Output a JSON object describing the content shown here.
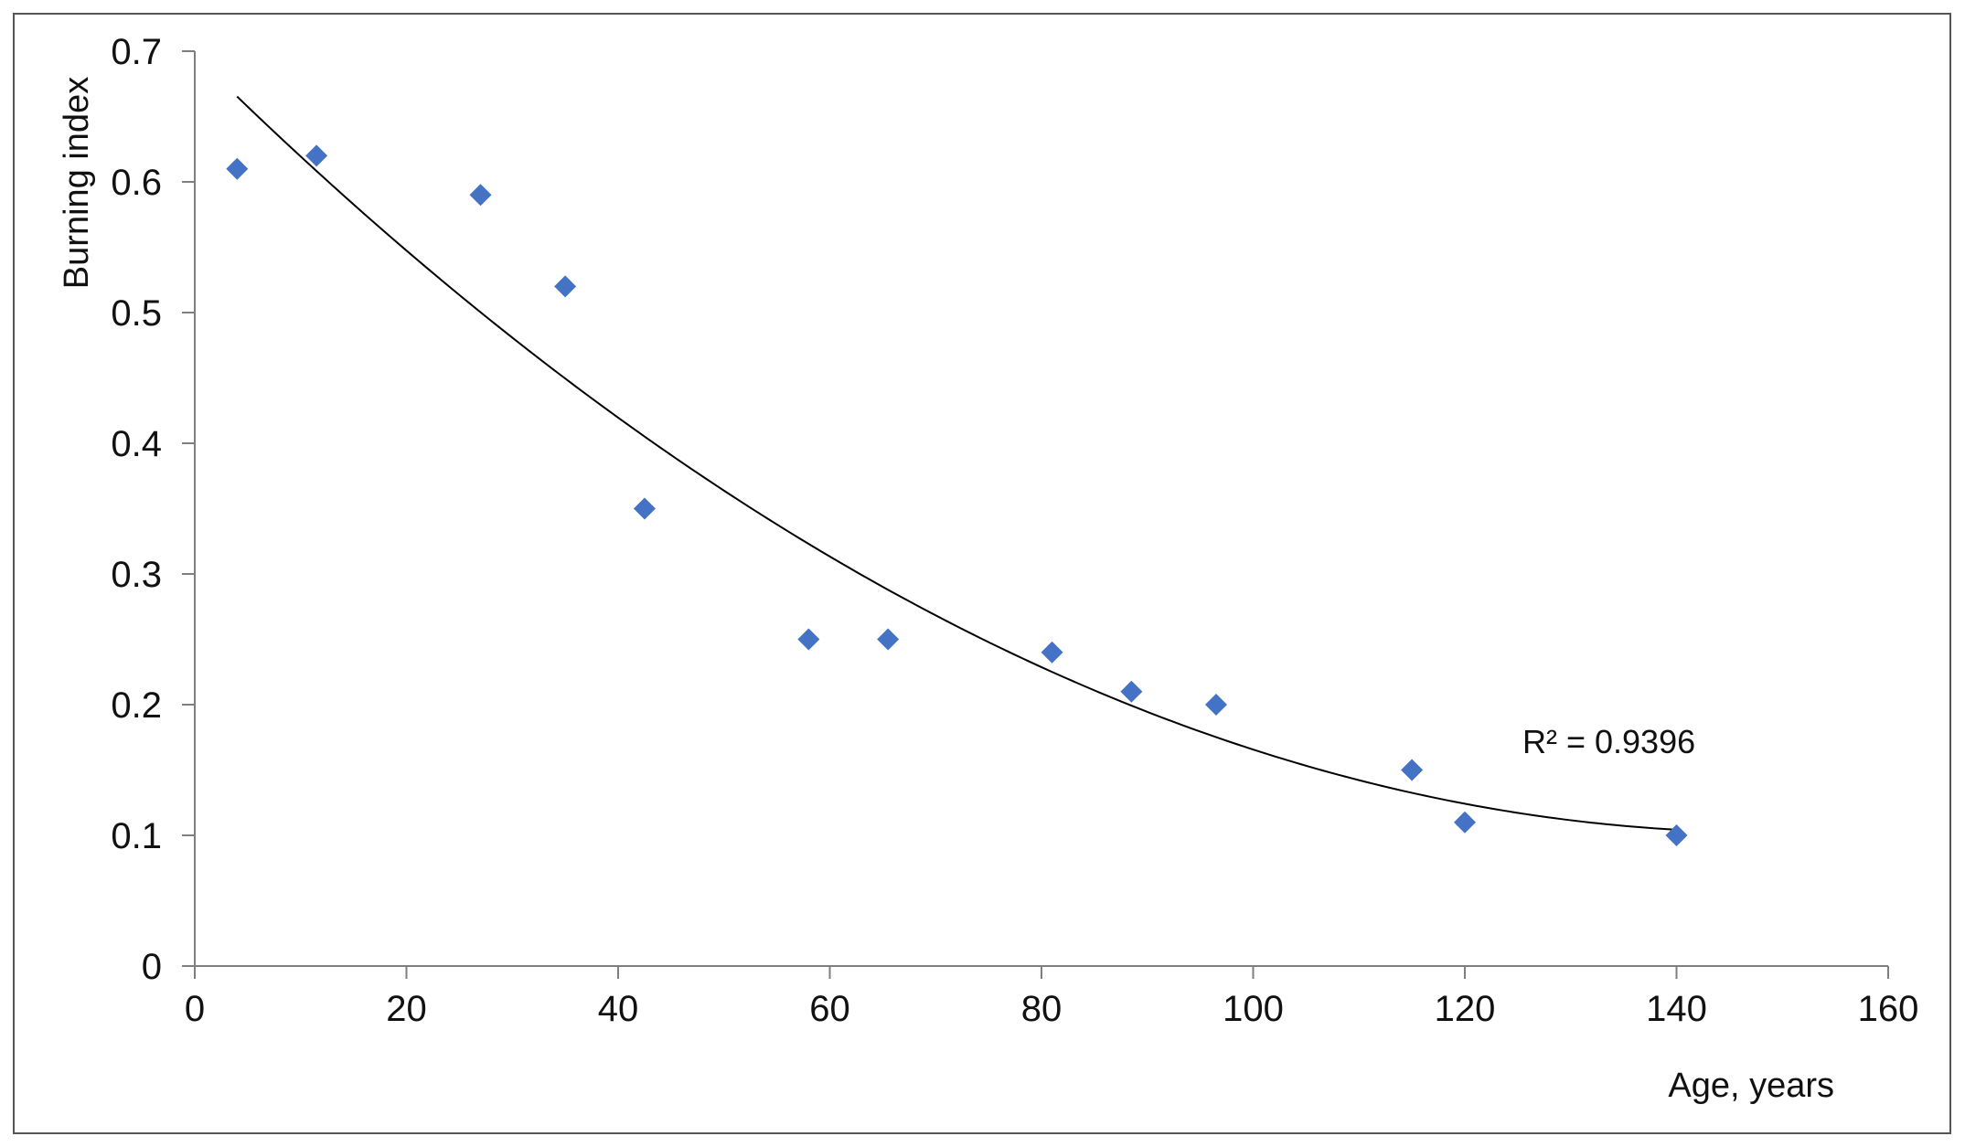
{
  "chart_data": {
    "type": "scatter",
    "xlabel": "Age, years",
    "ylabel": "Burning index",
    "xlim": [
      0,
      160
    ],
    "ylim": [
      0,
      0.7
    ],
    "x_ticks": [
      "0",
      "20",
      "40",
      "60",
      "80",
      "100",
      "120",
      "140",
      "160"
    ],
    "y_ticks": [
      "0",
      "0.1",
      "0.2",
      "0.3",
      "0.4",
      "0.5",
      "0.6",
      "0.7"
    ],
    "grid": false,
    "legend": "none",
    "marker_color": "#4472c4",
    "trendline_color": "#000000",
    "points": [
      {
        "x": 4,
        "y": 0.61
      },
      {
        "x": 11.5,
        "y": 0.62
      },
      {
        "x": 27,
        "y": 0.59
      },
      {
        "x": 35,
        "y": 0.52
      },
      {
        "x": 42.5,
        "y": 0.35
      },
      {
        "x": 58,
        "y": 0.25
      },
      {
        "x": 65.5,
        "y": 0.25
      },
      {
        "x": 81,
        "y": 0.24
      },
      {
        "x": 88.5,
        "y": 0.21
      },
      {
        "x": 96.5,
        "y": 0.2
      },
      {
        "x": 115,
        "y": 0.15
      },
      {
        "x": 120,
        "y": 0.11
      },
      {
        "x": 140,
        "y": 0.1
      }
    ],
    "trendline": {
      "type": "polynomial",
      "x_range": [
        4,
        140
      ],
      "r_squared_label": "R² = 0.9396"
    }
  }
}
